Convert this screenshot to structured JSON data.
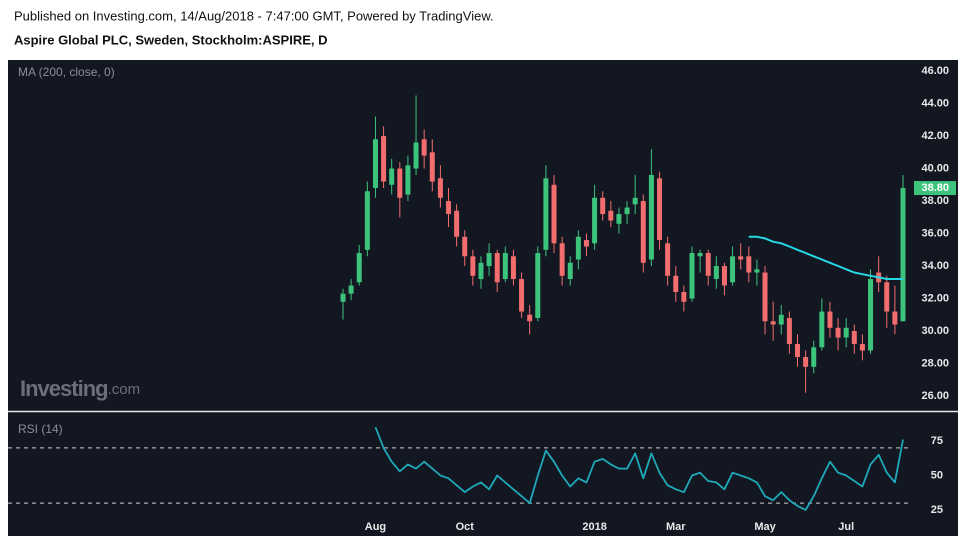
{
  "header": {
    "published": "Published on Investing.com, 14/Aug/2018 - 7:47:00 GMT, Powered by TradingView.",
    "instrument": "Aspire Global PLC, Sweden, Stockholm:ASPIRE, D"
  },
  "watermark": {
    "brand": "Investing",
    "suffix": ".com"
  },
  "chart_data": [
    {
      "type": "candlestick",
      "categories": [
        null,
        null,
        null,
        null,
        "Aug",
        null,
        null,
        null,
        null,
        null,
        null,
        null,
        null,
        null,
        null,
        "Oct",
        null,
        null,
        null,
        null,
        null,
        null,
        null,
        null,
        null,
        null,
        null,
        null,
        null,
        null,
        null,
        "2018",
        null,
        null,
        null,
        null,
        null,
        null,
        null,
        null,
        null,
        "Mar",
        null,
        null,
        null,
        null,
        null,
        null,
        null,
        null,
        null,
        null,
        "May",
        null,
        null,
        null,
        null,
        null,
        null,
        null,
        null,
        null,
        "Jul",
        null,
        null,
        null,
        null,
        null,
        null,
        null
      ],
      "open": [
        31.8,
        32.3,
        33.0,
        35.0,
        38.8,
        42.0,
        39.0,
        40.0,
        38.4,
        40.0,
        41.8,
        41.0,
        39.4,
        38.0,
        37.4,
        35.8,
        34.6,
        33.2,
        34.0,
        34.8,
        33.2,
        34.6,
        33.2,
        31.0,
        30.8,
        35.0,
        39.0,
        35.4,
        33.2,
        34.4,
        35.6,
        35.4,
        38.2,
        37.4,
        36.6,
        37.2,
        37.8,
        38.0,
        34.4,
        39.4,
        35.4,
        33.4,
        32.4,
        32.0,
        34.6,
        34.8,
        33.2,
        34.0,
        33.0,
        34.6,
        34.6,
        33.6,
        33.6,
        30.6,
        30.4,
        30.8,
        29.2,
        28.4,
        27.8,
        29.0,
        31.2,
        30.2,
        29.6,
        30.0,
        29.2,
        28.8,
        33.6,
        33.0,
        31.2,
        30.6
      ],
      "high": [
        32.6,
        33.2,
        35.3,
        39.2,
        43.2,
        42.6,
        40.6,
        40.4,
        40.8,
        44.5,
        42.4,
        41.8,
        40.2,
        38.8,
        37.8,
        36.2,
        35.0,
        34.6,
        35.4,
        35.0,
        35.2,
        35.0,
        33.6,
        31.6,
        35.2,
        40.2,
        39.6,
        35.8,
        34.6,
        36.2,
        36.0,
        39.0,
        38.6,
        38.0,
        37.6,
        38.0,
        39.6,
        38.4,
        41.2,
        39.8,
        35.8,
        34.0,
        32.8,
        35.2,
        35.0,
        35.0,
        34.6,
        34.2,
        35.2,
        35.4,
        35.2,
        34.4,
        34.0,
        31.8,
        31.6,
        31.2,
        29.8,
        28.8,
        29.4,
        32.0,
        31.8,
        30.8,
        30.8,
        30.4,
        29.8,
        33.8,
        34.6,
        33.4,
        32.8,
        39.6
      ],
      "low": [
        30.7,
        31.9,
        32.8,
        34.6,
        38.2,
        38.8,
        38.4,
        37.0,
        38.0,
        39.6,
        40.0,
        38.6,
        37.6,
        36.4,
        35.2,
        34.0,
        32.8,
        32.6,
        33.4,
        32.4,
        33.0,
        32.8,
        30.8,
        29.8,
        30.6,
        34.6,
        34.8,
        32.8,
        32.8,
        33.8,
        34.6,
        35.0,
        36.8,
        36.4,
        36.0,
        36.6,
        37.2,
        33.6,
        34.0,
        35.0,
        32.8,
        31.8,
        31.2,
        31.8,
        33.6,
        32.8,
        32.6,
        32.2,
        32.8,
        33.8,
        33.0,
        32.8,
        29.8,
        29.4,
        29.8,
        28.6,
        27.8,
        26.2,
        27.4,
        28.8,
        29.6,
        28.8,
        29.0,
        28.6,
        28.2,
        28.6,
        32.4,
        30.2,
        29.8,
        30.6
      ],
      "close": [
        32.3,
        32.8,
        34.8,
        38.6,
        41.8,
        39.2,
        40.0,
        38.2,
        40.2,
        41.6,
        40.8,
        39.2,
        38.2,
        37.2,
        35.8,
        34.6,
        33.4,
        34.2,
        34.8,
        33.0,
        34.8,
        33.2,
        31.2,
        30.6,
        34.8,
        39.4,
        35.4,
        33.4,
        34.2,
        35.8,
        35.2,
        38.2,
        37.2,
        36.8,
        37.2,
        37.6,
        38.2,
        34.2,
        39.6,
        35.6,
        33.4,
        32.4,
        31.8,
        34.8,
        34.8,
        33.4,
        34.0,
        32.8,
        34.6,
        34.4,
        33.6,
        33.8,
        30.6,
        30.4,
        31.0,
        29.2,
        28.4,
        27.8,
        29.0,
        31.2,
        30.2,
        29.6,
        30.2,
        29.2,
        28.8,
        33.2,
        33.0,
        31.2,
        30.4,
        38.8
      ],
      "up_color": "#3cc47c",
      "down_color": "#f26d6d",
      "ma": {
        "name": "MA (200, close, 0)",
        "color": "#26d9e6",
        "values": [
          null,
          null,
          null,
          null,
          null,
          null,
          null,
          null,
          null,
          null,
          null,
          null,
          null,
          null,
          null,
          null,
          null,
          null,
          null,
          null,
          null,
          null,
          null,
          null,
          null,
          null,
          null,
          null,
          null,
          null,
          null,
          null,
          null,
          null,
          null,
          null,
          null,
          null,
          null,
          null,
          null,
          null,
          null,
          null,
          null,
          null,
          null,
          null,
          null,
          null,
          35.8,
          35.8,
          35.7,
          35.5,
          35.4,
          35.2,
          35.0,
          34.8,
          34.6,
          34.4,
          34.2,
          34.0,
          33.8,
          33.6,
          33.5,
          33.4,
          33.3,
          33.2,
          33.2,
          33.2
        ]
      },
      "last_price": {
        "value": 38.8,
        "label": "38.80"
      },
      "ylim": [
        25.14,
        46.68
      ],
      "yticks": [
        {
          "value": 26,
          "label": "26.00"
        },
        {
          "value": 28,
          "label": "28.00"
        },
        {
          "value": 30,
          "label": "30.00"
        },
        {
          "value": 32,
          "label": "32.00"
        },
        {
          "value": 34,
          "label": "34.00"
        },
        {
          "value": 36,
          "label": "36.00"
        },
        {
          "value": 38,
          "label": "38.00"
        },
        {
          "value": 40,
          "label": "40.00"
        },
        {
          "value": 42,
          "label": "42.00"
        },
        {
          "value": 44,
          "label": "44.00"
        },
        {
          "value": 46,
          "label": "46.00"
        }
      ]
    },
    {
      "type": "line",
      "name": "RSI (14)",
      "color": "#1fa9b8",
      "values": [
        null,
        null,
        null,
        null,
        85,
        70,
        60,
        53,
        58,
        55,
        60,
        55,
        50,
        48,
        43,
        38,
        42,
        45,
        40,
        50,
        45,
        40,
        35,
        30,
        50,
        68,
        60,
        50,
        42,
        48,
        45,
        60,
        62,
        58,
        55,
        55,
        66,
        48,
        66,
        52,
        43,
        40,
        38,
        50,
        52,
        46,
        45,
        40,
        52,
        50,
        48,
        45,
        35,
        32,
        38,
        32,
        28,
        25,
        35,
        48,
        60,
        52,
        50,
        46,
        42,
        58,
        65,
        52,
        45,
        76
      ],
      "bands": [
        30,
        70
      ],
      "ylim": [
        19.2,
        96
      ],
      "yticks": [
        25,
        50,
        75
      ]
    }
  ]
}
